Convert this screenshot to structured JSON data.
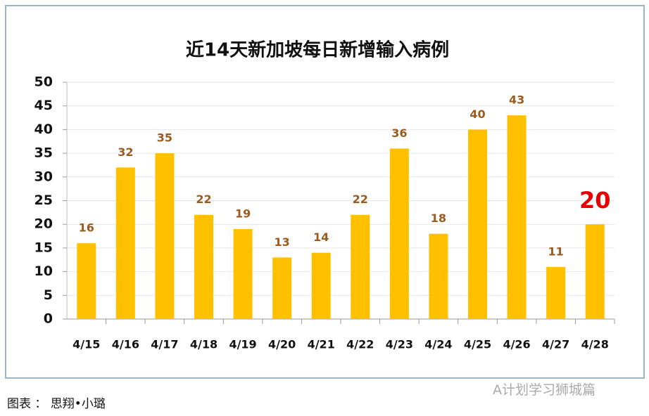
{
  "chart_data": {
    "type": "bar",
    "title": "近14天新加坡每日新增输入病例",
    "categories": [
      "4/15",
      "4/16",
      "4/17",
      "4/18",
      "4/19",
      "4/20",
      "4/21",
      "4/22",
      "4/23",
      "4/24",
      "4/25",
      "4/26",
      "4/27",
      "4/28"
    ],
    "values": [
      16,
      32,
      35,
      22,
      19,
      13,
      14,
      22,
      36,
      18,
      40,
      43,
      11,
      20
    ],
    "color": "#ffc000",
    "value_label_colors": [
      "#9c5a1c",
      "#9c5a1c",
      "#9c5a1c",
      "#9c5a1c",
      "#9c5a1c",
      "#9c5a1c",
      "#9c5a1c",
      "#9c5a1c",
      "#9c5a1c",
      "#9c5a1c",
      "#9c5a1c",
      "#9c5a1c",
      "#9c5a1c",
      "#e60000"
    ],
    "ylim": [
      0,
      50
    ],
    "yticks": [
      0,
      5,
      10,
      15,
      20,
      25,
      30,
      35,
      40,
      45,
      50
    ],
    "grid": true
  },
  "caption": "图表 ： 思翔•小璐",
  "watermark": "A计划学习狮城篇"
}
